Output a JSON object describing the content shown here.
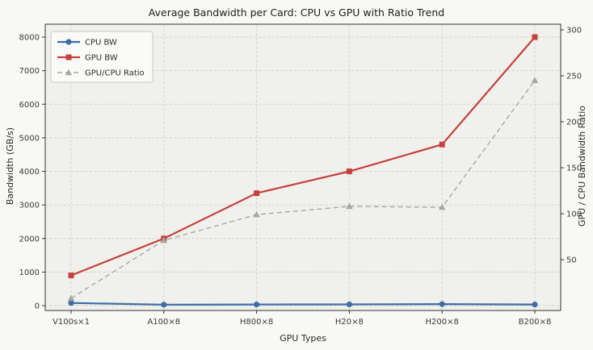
{
  "chart_data": {
    "type": "line",
    "title": "Average Bandwidth per Card: CPU vs GPU with Ratio Trend",
    "xlabel": "GPU Types",
    "categories": [
      "V100s×1",
      "A100×8",
      "H800×8",
      "H20×8",
      "H200×8",
      "B200×8"
    ],
    "left_axis": {
      "label": "Bandwidth (GB/s)",
      "min": 0,
      "max": 8000,
      "ticks": [
        0,
        1000,
        2000,
        3000,
        4000,
        5000,
        6000,
        7000,
        8000
      ]
    },
    "right_axis": {
      "label": "GPU / CPU Bandwidth Ratio",
      "min": 0,
      "max": 300,
      "ticks": [
        50,
        100,
        150,
        200,
        250,
        300
      ]
    },
    "series": [
      {
        "name": "CPU BW",
        "axis": "left",
        "color": "#3d6da6",
        "marker": "circle",
        "line": "solid",
        "values": [
          80,
          28,
          34,
          37,
          45,
          33
        ]
      },
      {
        "name": "GPU BW",
        "axis": "left",
        "color": "#c5413d",
        "marker": "square",
        "line": "solid",
        "values": [
          900,
          2000,
          3350,
          4000,
          4800,
          8000
        ]
      },
      {
        "name": "GPU/CPU Ratio",
        "axis": "right",
        "color": "#a6a6a3",
        "marker": "triangle",
        "line": "dashed",
        "values": [
          8,
          71,
          99,
          108,
          107,
          245
        ]
      }
    ],
    "legend": {
      "position": "upper left"
    },
    "grid": true
  },
  "style": {
    "figure_bg": "#f8f8f4",
    "plot_bg": "#f0f0ec",
    "grid_color": "#d2d2cd",
    "spine_color": "#333333",
    "tick_color": "#3a3a3a",
    "legend_bg": "#fbfbf8",
    "legend_border": "#c9c9c4",
    "legend_text": "#2b2b2b"
  }
}
